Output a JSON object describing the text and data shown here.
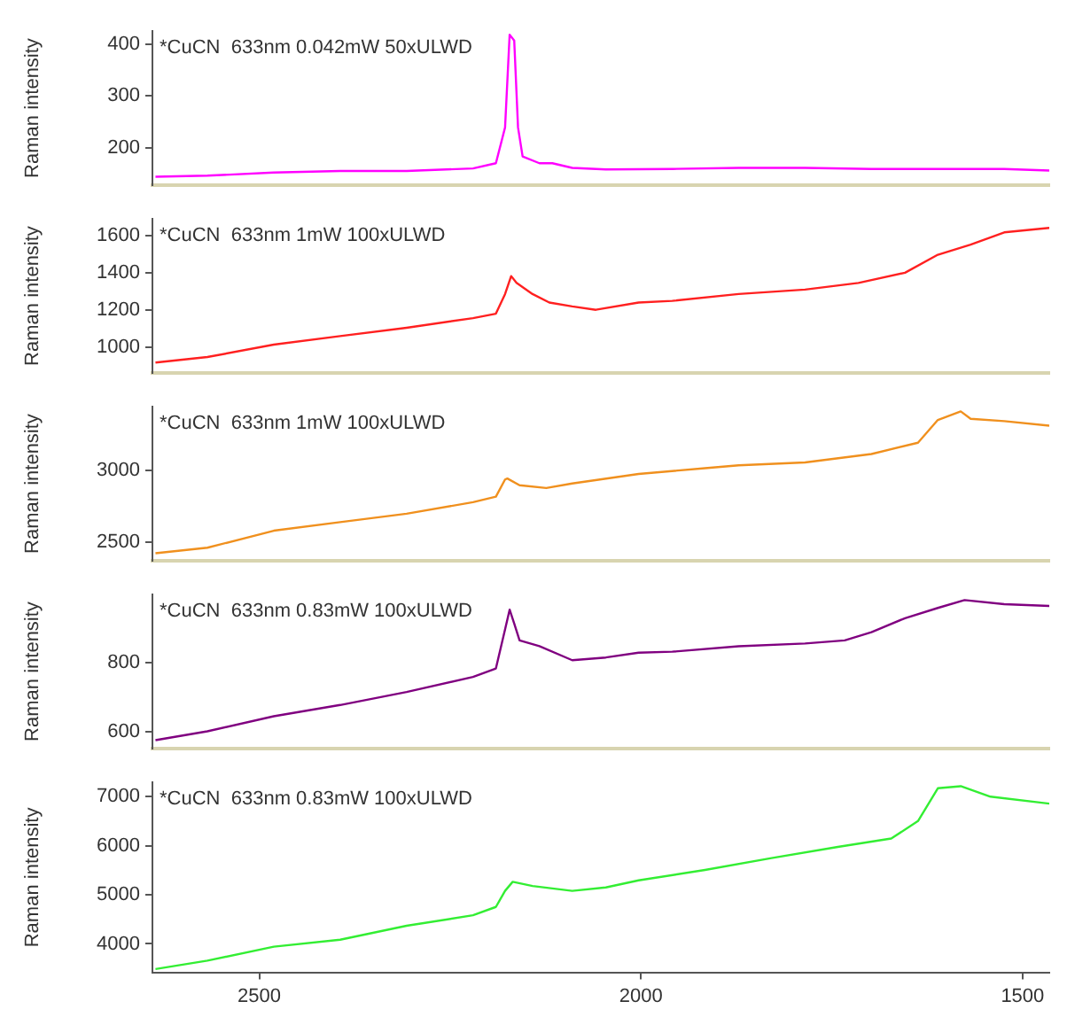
{
  "chart_data": [
    {
      "type": "line",
      "ylabel": "Raman intensity",
      "annotations": [
        "*CuCN  633nm 0.042mW 50xULWD"
      ],
      "xlim": [
        2640,
        1465
      ],
      "xticks": [
        2500,
        2000,
        1500
      ],
      "ylim": [
        128,
        425
      ],
      "yticks": [
        200,
        300,
        400
      ],
      "tick_labels": "y",
      "grid": false,
      "legend": false,
      "marker": "none",
      "line_style": "solid",
      "series": [
        {
          "color": "#ff00ff",
          "x": [
            2636,
            2568,
            2481,
            2394,
            2307,
            2220,
            2190,
            2178,
            2172,
            2166,
            2161,
            2155,
            2133,
            2116,
            2090,
            2046,
            1959,
            1872,
            1785,
            1698,
            1611,
            1524,
            1465
          ],
          "values": [
            144,
            146,
            152,
            155,
            155,
            160,
            170,
            239,
            418,
            407,
            239,
            183,
            170,
            170,
            161,
            158,
            159,
            161,
            161,
            159,
            159,
            159,
            156
          ]
        }
      ]
    },
    {
      "type": "line",
      "ylabel": "Raman intensity",
      "annotations": [
        "*CuCN  633nm 1mW 100xULWD"
      ],
      "xlim": [
        2640,
        1465
      ],
      "xticks": [
        2500,
        2000,
        1500
      ],
      "ylim": [
        860,
        1690
      ],
      "yticks": [
        1000,
        1200,
        1400,
        1600
      ],
      "tick_labels": "y",
      "grid": false,
      "legend": false,
      "marker": "none",
      "line_style": "solid",
      "series": [
        {
          "color": "#ff2020",
          "x": [
            2636,
            2568,
            2481,
            2394,
            2307,
            2220,
            2190,
            2178,
            2170,
            2163,
            2142,
            2120,
            2090,
            2059,
            2003,
            1959,
            1872,
            1785,
            1715,
            1654,
            1611,
            1568,
            1524,
            1465
          ],
          "values": [
            915,
            945,
            1012,
            1058,
            1103,
            1155,
            1179,
            1285,
            1382,
            1345,
            1285,
            1239,
            1218,
            1200,
            1239,
            1248,
            1285,
            1309,
            1345,
            1400,
            1497,
            1552,
            1618,
            1642
          ]
        }
      ]
    },
    {
      "type": "line",
      "ylabel": "Raman intensity",
      "annotations": [
        "*CuCN  633nm 1mW 100xULWD"
      ],
      "xlim": [
        2640,
        1465
      ],
      "xticks": [
        2500,
        2000,
        1500
      ],
      "ylim": [
        2370,
        3445
      ],
      "yticks": [
        2500,
        3000
      ],
      "tick_labels": "y",
      "grid": false,
      "legend": false,
      "marker": "none",
      "line_style": "solid",
      "series": [
        {
          "color": "#f0901e",
          "x": [
            2636,
            2568,
            2481,
            2394,
            2307,
            2220,
            2190,
            2178,
            2175,
            2159,
            2124,
            2090,
            2003,
            1916,
            1872,
            1785,
            1698,
            1637,
            1611,
            1581,
            1568,
            1524,
            1465
          ],
          "values": [
            2421,
            2460,
            2579,
            2639,
            2698,
            2778,
            2817,
            2937,
            2944,
            2897,
            2877,
            2909,
            2976,
            3016,
            3036,
            3056,
            3115,
            3194,
            3353,
            3413,
            3361,
            3345,
            3313
          ]
        }
      ]
    },
    {
      "type": "line",
      "ylabel": "Raman intensity",
      "annotations": [
        "*CuCN  633nm 0.83mW 100xULWD"
      ],
      "xlim": [
        2640,
        1465
      ],
      "xticks": [
        2500,
        2000,
        1500
      ],
      "ylim": [
        550,
        1000
      ],
      "yticks": [
        600,
        800
      ],
      "tick_labels": "y",
      "grid": false,
      "legend": false,
      "marker": "none",
      "line_style": "solid",
      "series": [
        {
          "color": "#800080",
          "x": [
            2636,
            2568,
            2481,
            2394,
            2307,
            2220,
            2190,
            2178,
            2172,
            2166,
            2159,
            2133,
            2090,
            2046,
            2003,
            1959,
            1872,
            1785,
            1733,
            1698,
            1654,
            1611,
            1576,
            1524,
            1465
          ],
          "values": [
            574,
            600,
            644,
            677,
            715,
            759,
            784,
            898,
            956,
            915,
            866,
            849,
            808,
            816,
            830,
            833,
            849,
            857,
            866,
            890,
            931,
            961,
            984,
            972,
            967
          ]
        }
      ]
    },
    {
      "type": "line",
      "ylabel": "Raman intensity",
      "annotations": [
        "*CuCN  633nm 0.83mW 100xULWD"
      ],
      "xlim": [
        2640,
        1465
      ],
      "xticks": [
        2500,
        2000,
        1500
      ],
      "ylim": [
        3420,
        7290
      ],
      "yticks": [
        4000,
        5000,
        6000,
        7000
      ],
      "grid": false,
      "legend": false,
      "marker": "none",
      "line_style": "solid",
      "series": [
        {
          "color": "#33ee33",
          "x": [
            2636,
            2568,
            2481,
            2394,
            2307,
            2220,
            2190,
            2178,
            2168,
            2142,
            2090,
            2046,
            2003,
            1916,
            1829,
            1742,
            1672,
            1637,
            1611,
            1581,
            1542,
            1465
          ],
          "values": [
            3488,
            3658,
            3943,
            4085,
            4369,
            4583,
            4753,
            5080,
            5265,
            5180,
            5080,
            5151,
            5294,
            5507,
            5749,
            5976,
            6147,
            6502,
            7171,
            7213,
            7000,
            6858
          ]
        }
      ]
    }
  ]
}
